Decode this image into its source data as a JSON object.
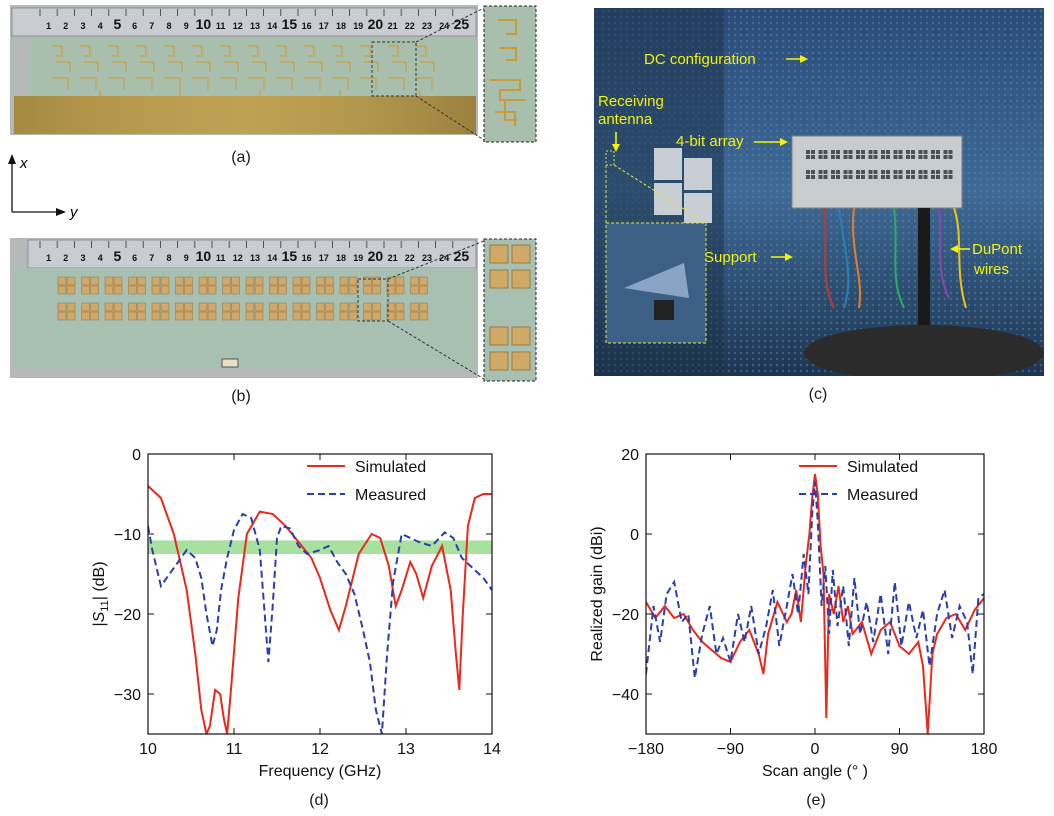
{
  "figure": {
    "panel_labels": [
      "(a)",
      "(b)",
      "(c)",
      "(d)",
      "(e)"
    ],
    "axis_hint": {
      "x_label": "x",
      "y_label": "y"
    },
    "ruler_numbers": [
      "1",
      "2",
      "3",
      "4",
      "5",
      "6",
      "7",
      "8",
      "9",
      "10",
      "11",
      "12",
      "13",
      "14",
      "15",
      "16",
      "17",
      "18",
      "19",
      "20",
      "21",
      "22",
      "23",
      "24",
      "25"
    ],
    "photo_c": {
      "dc_label": "DC configuration",
      "receiving_label_1": "Receiving",
      "receiving_label_2": "antenna",
      "array_label": "4-bit array",
      "support_label": "Support",
      "dupont_label_1": "DuPont",
      "dupont_label_2": "wires",
      "label_color": "#f2f20a"
    }
  },
  "chart_data": [
    {
      "type": "line",
      "panel": "(d)",
      "xlabel": "Frequency (GHz)",
      "ylabel": "|S11| (dB)",
      "ylabel_parts": {
        "pre": "|",
        "main": "S",
        "sub": "11",
        "post": "| (dB)"
      },
      "xlim": [
        10,
        14
      ],
      "ylim": [
        -35,
        0
      ],
      "xticks": [
        "10",
        "11",
        "12",
        "13",
        "14"
      ],
      "yticks": [
        "0",
        "-10",
        "-20",
        "-30"
      ],
      "ytick_values": [
        0,
        -10,
        -20,
        -30
      ],
      "xtick_values": [
        10,
        11,
        12,
        13,
        14
      ],
      "band": {
        "from": -12.5,
        "to": -10.8,
        "color": "#a8e0a0"
      },
      "legend": {
        "position": "top-right",
        "entries": [
          "Simulated",
          "Measured"
        ]
      },
      "series": [
        {
          "name": "Simulated",
          "color": "#e8291c",
          "style": "solid",
          "x": [
            10.0,
            10.15,
            10.3,
            10.45,
            10.55,
            10.62,
            10.68,
            10.72,
            10.78,
            10.84,
            10.88,
            10.92,
            10.96,
            11.05,
            11.15,
            11.3,
            11.45,
            11.6,
            11.75,
            11.9,
            12.0,
            12.12,
            12.22,
            12.3,
            12.45,
            12.6,
            12.7,
            12.8,
            12.88,
            12.95,
            13.05,
            13.12,
            13.2,
            13.3,
            13.42,
            13.52,
            13.58,
            13.62,
            13.66,
            13.72,
            13.8,
            13.9,
            14.0
          ],
          "y": [
            -4,
            -5.5,
            -10,
            -17,
            -25,
            -32,
            -35,
            -34,
            -29.5,
            -30,
            -33,
            -35,
            -30,
            -18,
            -10,
            -7.2,
            -7.5,
            -9,
            -11,
            -13,
            -15.5,
            -19.5,
            -22,
            -19,
            -12.5,
            -10,
            -10.5,
            -14,
            -19,
            -17,
            -13.5,
            -15,
            -18,
            -14,
            -11.5,
            -17,
            -25,
            -29.5,
            -20,
            -9,
            -5.5,
            -5,
            -5
          ]
        },
        {
          "name": "Measured",
          "color": "#2b3fa8",
          "style": "dashed",
          "x": [
            10.0,
            10.05,
            10.15,
            10.25,
            10.35,
            10.45,
            10.55,
            10.62,
            10.68,
            10.75,
            10.8,
            10.85,
            10.92,
            11.0,
            11.1,
            11.2,
            11.3,
            11.35,
            11.4,
            11.45,
            11.5,
            11.55,
            11.65,
            11.75,
            11.85,
            12.0,
            12.1,
            12.2,
            12.3,
            12.4,
            12.5,
            12.58,
            12.65,
            12.72,
            12.78,
            12.85,
            12.95,
            13.05,
            13.15,
            13.3,
            13.45,
            13.55,
            13.65,
            13.8,
            13.9,
            14.0
          ],
          "y": [
            -9,
            -12,
            -16.5,
            -15,
            -13.5,
            -12,
            -13,
            -15.5,
            -20,
            -24,
            -22,
            -17,
            -13,
            -9.5,
            -7.5,
            -8,
            -12,
            -19,
            -26,
            -19,
            -10.5,
            -9,
            -9.3,
            -11.5,
            -12.5,
            -12,
            -11.5,
            -13.5,
            -15,
            -17.5,
            -22,
            -26,
            -32,
            -35,
            -25,
            -16,
            -10,
            -10.5,
            -11,
            -11.5,
            -9.8,
            -10.5,
            -13,
            -14.5,
            -15.5,
            -17
          ]
        }
      ]
    },
    {
      "type": "line",
      "panel": "(e)",
      "xlabel": "Scan angle (° )",
      "ylabel": "Realized gain (dBi)",
      "xlim": [
        -180,
        180
      ],
      "ylim": [
        -50,
        20
      ],
      "xticks": [
        "-180",
        "-90",
        "0",
        "90",
        "180"
      ],
      "xtick_values": [
        -180,
        -90,
        0,
        90,
        180
      ],
      "yticks": [
        "20",
        "0",
        "-20",
        "-40"
      ],
      "ytick_values": [
        20,
        0,
        -20,
        -40
      ],
      "legend": {
        "position": "top-right",
        "entries": [
          "Simulated",
          "Measured"
        ]
      },
      "series": [
        {
          "name": "Simulated",
          "color": "#e8291c",
          "style": "solid",
          "x": [
            -180,
            -170,
            -160,
            -150,
            -140,
            -130,
            -120,
            -110,
            -100,
            -90,
            -80,
            -70,
            -60,
            -55,
            -50,
            -40,
            -30,
            -25,
            -20,
            -15,
            -10,
            -6,
            -3,
            0,
            3,
            6,
            9,
            12,
            15,
            20,
            25,
            30,
            35,
            40,
            50,
            60,
            70,
            80,
            90,
            100,
            110,
            115,
            118,
            120,
            125,
            130,
            140,
            150,
            160,
            170,
            180
          ],
          "y": [
            -17,
            -21,
            -18,
            -21,
            -20,
            -24,
            -27,
            -29,
            -31,
            -32,
            -27,
            -24,
            -30,
            -35,
            -25,
            -17,
            -22,
            -20,
            -14,
            -22,
            -8,
            0,
            9,
            15,
            10,
            -3,
            -10,
            -46,
            -15,
            -20,
            -13,
            -22,
            -18,
            -25,
            -22,
            -30,
            -24,
            -22,
            -28,
            -30,
            -27,
            -33,
            -43,
            -50,
            -30,
            -25,
            -21,
            -20,
            -24,
            -19,
            -16
          ]
        },
        {
          "name": "Measured",
          "color": "#2b3fa8",
          "style": "dashed",
          "x": [
            -180,
            -172,
            -165,
            -158,
            -150,
            -142,
            -135,
            -128,
            -120,
            -112,
            -105,
            -98,
            -90,
            -82,
            -75,
            -68,
            -60,
            -52,
            -45,
            -38,
            -30,
            -24,
            -18,
            -12,
            -7,
            -3,
            0,
            3,
            7,
            11,
            15,
            19,
            24,
            30,
            36,
            42,
            48,
            55,
            62,
            70,
            78,
            85,
            92,
            100,
            108,
            115,
            122,
            130,
            138,
            146,
            154,
            162,
            168,
            174,
            180
          ],
          "y": [
            -35,
            -18,
            -27,
            -15,
            -12,
            -22,
            -20,
            -36,
            -25,
            -18,
            -30,
            -26,
            -32,
            -20,
            -27,
            -18,
            -30,
            -23,
            -14,
            -28,
            -18,
            -10,
            -20,
            -5,
            -15,
            5,
            13,
            3,
            -18,
            -8,
            -25,
            -9,
            -23,
            -13,
            -28,
            -11,
            -25,
            -17,
            -27,
            -15,
            -30,
            -12,
            -28,
            -17,
            -26,
            -19,
            -33,
            -20,
            -14,
            -26,
            -18,
            -22,
            -35,
            -16,
            -15
          ]
        }
      ]
    }
  ]
}
